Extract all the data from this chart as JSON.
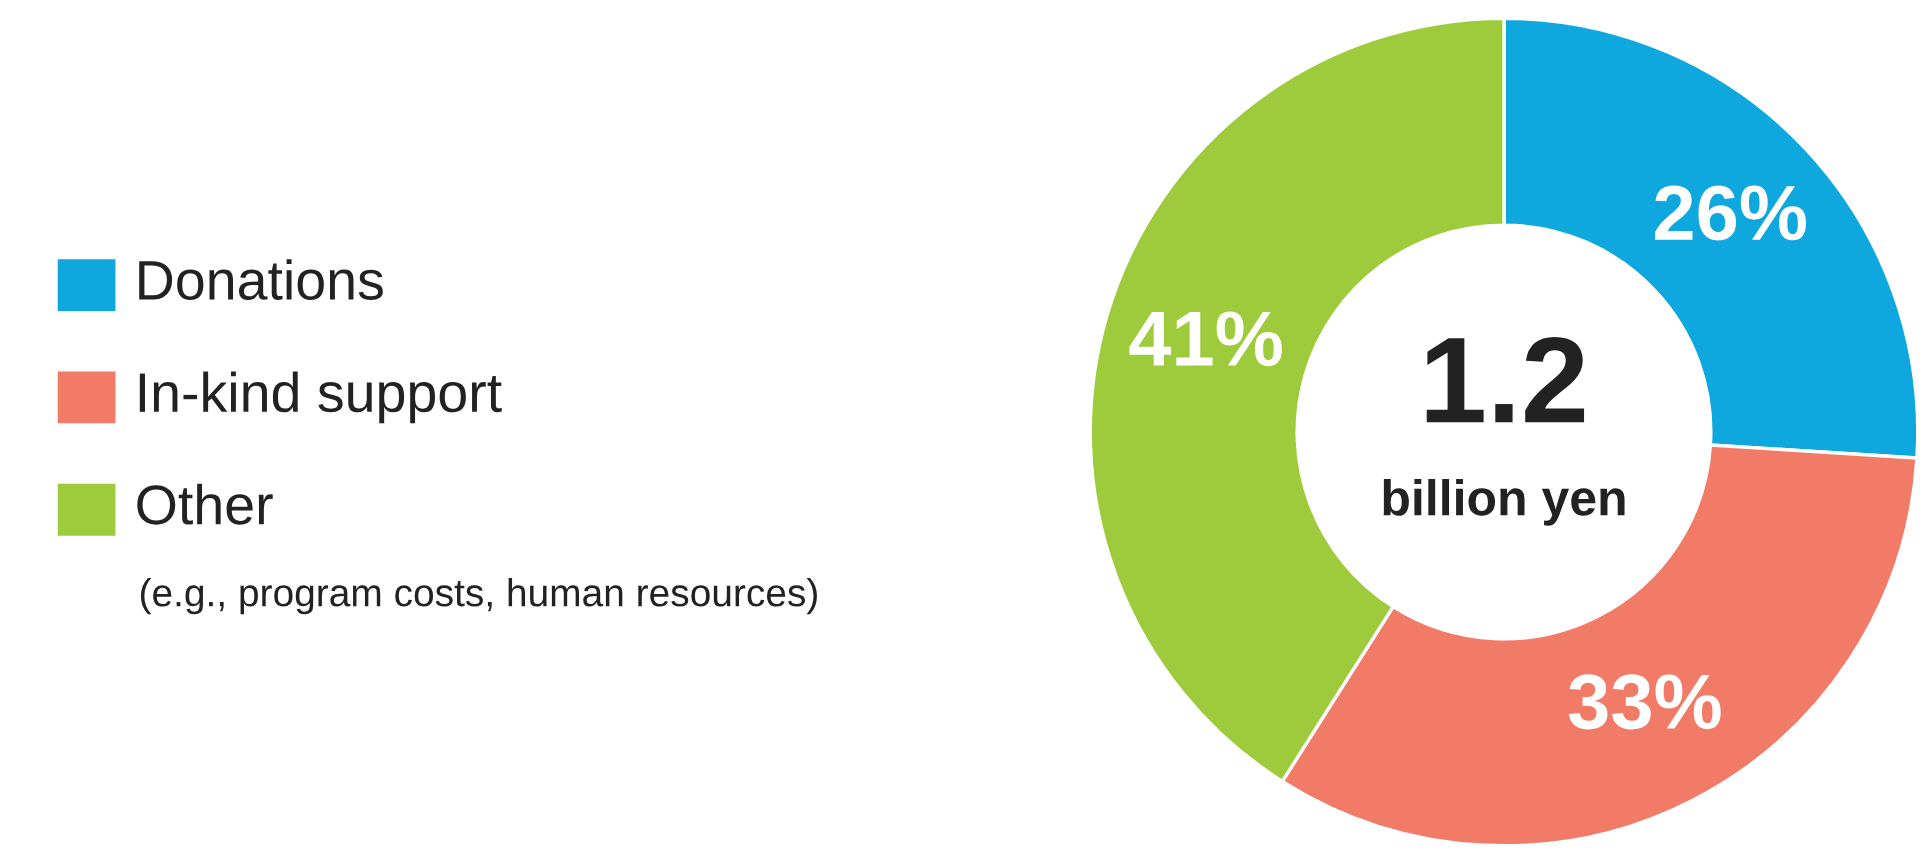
{
  "chart_data": {
    "type": "donut",
    "categories": [
      "Donations",
      "In-kind support",
      "Other"
    ],
    "values": [
      26,
      33,
      41
    ],
    "colors": [
      "#0ea8de",
      "#f17b66",
      "#9dcb3c"
    ],
    "value_labels": [
      "26%",
      "33%",
      "41%"
    ],
    "legend": "left",
    "annotations": [
      "(e.g., program costs, human resources)",
      "1.2",
      "billion yen"
    ]
  }
}
